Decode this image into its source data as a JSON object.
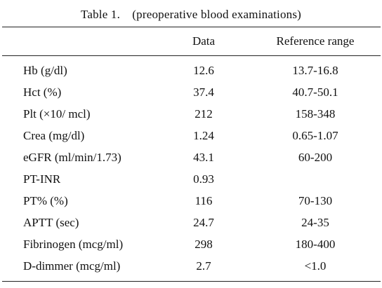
{
  "table": {
    "caption": "Table 1.　(preoperative blood examinations)",
    "headers": {
      "label": "",
      "data": "Data",
      "reference": "Reference range"
    },
    "rows": [
      {
        "label": "Hb (g/dl)",
        "data": "12.6",
        "reference": "13.7-16.8"
      },
      {
        "label": "Hct (%)",
        "data": "37.4",
        "reference": "40.7-50.1"
      },
      {
        "label": "Plt (×10/ mcl)",
        "data": "212",
        "reference": "158-348"
      },
      {
        "label": "Crea (mg/dl)",
        "data": "1.24",
        "reference": "0.65-1.07"
      },
      {
        "label": "eGFR (ml/min/1.73)",
        "data": "43.1",
        "reference": "60-200"
      },
      {
        "label": "PT-INR",
        "data": "0.93",
        "reference": ""
      },
      {
        "label": "PT% (%)",
        "data": "116",
        "reference": "70-130"
      },
      {
        "label": "APTT (sec)",
        "data": "24.7",
        "reference": "24-35"
      },
      {
        "label": "Fibrinogen (mcg/ml)",
        "data": "298",
        "reference": "180-400"
      },
      {
        "label": "D-dimmer (mcg/ml)",
        "data": "2.7",
        "reference": "<1.0"
      }
    ]
  }
}
